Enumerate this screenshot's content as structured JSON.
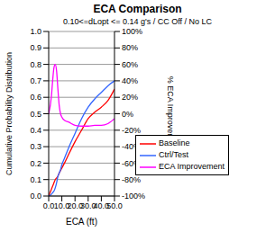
{
  "chart_data": {
    "type": "line",
    "title": "ECA Comparison",
    "subtitle": "0.10<=dLopt <= 0.14 g's / CC Off / No LC",
    "x_label": "ECA (ft)",
    "y_label": "Cumulative Probability Distribution",
    "y2_label": "% ECA Improvement",
    "x": [
      0,
      2,
      3,
      4,
      5,
      6,
      7,
      8,
      9,
      10,
      12,
      15,
      20,
      25,
      30,
      35,
      40,
      45,
      50
    ],
    "series": [
      {
        "name": "Baseline",
        "color": "#ff0000",
        "values": [
          0,
          0.04,
          0.06,
          0.08,
          0.1,
          0.11,
          0.12,
          0.14,
          0.155,
          0.17,
          0.2,
          0.25,
          0.33,
          0.4,
          0.47,
          0.51,
          0.54,
          0.58,
          0.65
        ]
      },
      {
        "name": "Ctrl/Test",
        "color": "#3366ff",
        "values": [
          0,
          0.01,
          0.02,
          0.03,
          0.05,
          0.08,
          0.12,
          0.14,
          0.16,
          0.19,
          0.23,
          0.29,
          0.38,
          0.47,
          0.54,
          0.59,
          0.63,
          0.67,
          0.7
        ]
      },
      {
        "name": "ECA Improvement",
        "color": "#ff00ff",
        "axis": "y2",
        "values": [
          0,
          20,
          40,
          56,
          60,
          52,
          30,
          10,
          0,
          -4,
          -8,
          -10,
          -14,
          -15,
          -15,
          -14,
          -14,
          -12,
          -6
        ]
      }
    ],
    "xlim": [
      0,
      50
    ],
    "xticks": [
      {
        "value": 0,
        "label": "0.0"
      },
      {
        "value": 10,
        "label": "10.0"
      },
      {
        "value": 20,
        "label": "20.0"
      },
      {
        "value": 30,
        "label": "30.0"
      },
      {
        "value": 40,
        "label": "40.0"
      },
      {
        "value": 50,
        "label": "50.0"
      }
    ],
    "ylim": [
      0,
      1
    ],
    "yticks": [
      {
        "value": 0,
        "label": "0.0"
      },
      0.1,
      0.2,
      0.3,
      0.4,
      0.5,
      0.6,
      0.7,
      0.8,
      0.9,
      {
        "value": 1,
        "label": "1.0"
      }
    ],
    "y2lim": [
      -100,
      100
    ],
    "y2ticks": [
      {
        "value": -100,
        "label": "-100%"
      },
      {
        "value": -80,
        "label": "-80%"
      },
      {
        "value": -60,
        "label": "-60%"
      },
      {
        "value": -40,
        "label": "-40%"
      },
      {
        "value": -20,
        "label": "-20%"
      },
      {
        "value": 0,
        "label": "0%"
      },
      {
        "value": 20,
        "label": "20%"
      },
      {
        "value": 40,
        "label": "40%"
      },
      {
        "value": 60,
        "label": "60%"
      },
      {
        "value": 80,
        "label": "80%"
      },
      {
        "value": 100,
        "label": "100%"
      }
    ],
    "grid": true,
    "legend": "bottom right"
  }
}
